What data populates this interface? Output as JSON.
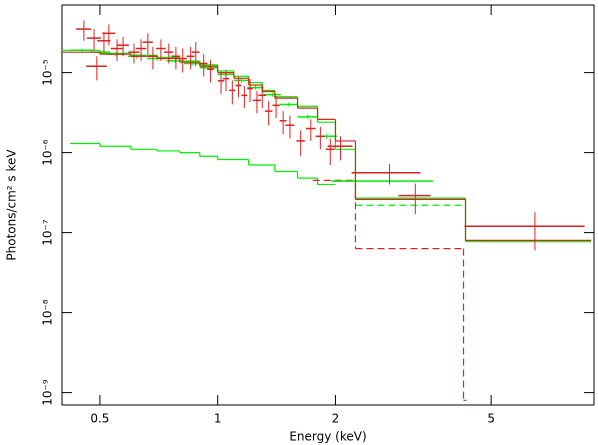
{
  "chart_data": {
    "type": "spectrum",
    "xlabel": "Energy (keV)",
    "ylabel": "Photons/cm² s keV",
    "xscale": "log",
    "yscale": "log",
    "xlim": [
      0.4,
      9.16
    ],
    "ylim": [
      7e-10,
      7e-05
    ],
    "xticks": [
      0.5,
      1,
      2,
      5
    ],
    "yticks": [
      {
        "value": 1e-09,
        "label": "10⁻⁹"
      },
      {
        "value": 1e-08,
        "label": "10⁻⁸"
      },
      {
        "value": 1e-07,
        "label": "10⁻⁷"
      },
      {
        "value": 1e-06,
        "label": "10⁻⁶"
      },
      {
        "value": 1e-05,
        "label": "10⁻⁵"
      }
    ],
    "series": [
      {
        "kind": "step",
        "color": "#00ee00",
        "dash": false,
        "bins": [
          0.42,
          0.5,
          0.6,
          0.7,
          0.8,
          0.9,
          1.0,
          1.2,
          1.4,
          1.6,
          1.8,
          2.0
        ],
        "values": [
          1.3e-06,
          1.2e-06,
          1.1e-06,
          1.05e-06,
          1e-06,
          9e-07,
          8.2e-07,
          7e-07,
          5.8e-07,
          4.8e-07,
          4e-07
        ]
      },
      {
        "kind": "step",
        "color": "#00ee00",
        "dash": false,
        "bins": [
          0.4,
          0.5,
          0.6,
          0.7,
          0.8,
          0.9,
          1.0,
          1.1,
          1.2,
          1.3,
          1.4,
          1.6,
          1.8,
          2.0,
          2.25,
          4.3,
          9.0
        ],
        "values": [
          1.9e-05,
          1.75e-05,
          1.65e-05,
          1.55e-05,
          1.4e-05,
          1.25e-05,
          1.05e-05,
          9e-06,
          7.5e-06,
          6e-06,
          5e-06,
          3.8e-06,
          2.4e-06,
          1.1e-06,
          2.7e-07,
          7.7e-08
        ]
      },
      {
        "kind": "step",
        "color": "#00ee00",
        "dash": true,
        "bins": [
          2.25,
          4.25
        ],
        "values": [
          2.2e-07
        ]
      },
      {
        "kind": "step",
        "color": "#dd2222",
        "dash": true,
        "bins": [
          1.75,
          2.25,
          4.25,
          4.32
        ],
        "values": [
          4.5e-07,
          6.3e-08,
          8e-10
        ]
      },
      {
        "kind": "errorbar",
        "color": "#00ee00",
        "x": [
          0.45,
          0.5,
          0.55,
          0.62,
          0.7,
          0.78,
          0.86,
          0.95,
          1.05,
          1.15,
          1.25,
          1.38,
          1.52,
          1.7,
          1.9,
          2.75
        ],
        "xerr": [
          0.03,
          0.03,
          0.03,
          0.03,
          0.04,
          0.04,
          0.04,
          0.05,
          0.05,
          0.05,
          0.06,
          0.07,
          0.08,
          0.1,
          0.12,
          0.8
        ],
        "values": [
          1.9e-05,
          1.8e-05,
          1.7e-05,
          1.6e-05,
          1.5e-05,
          1.4e-05,
          1.3e-05,
          1.15e-05,
          9.5e-06,
          8e-06,
          6.5e-06,
          5.3e-06,
          4e-06,
          2.8e-06,
          1.6e-06,
          4.4e-07
        ],
        "yerr": [
          1e-06,
          1e-06,
          1e-06,
          1e-06,
          1e-06,
          8e-07,
          8e-07,
          7e-07,
          6e-07,
          5e-07,
          4e-07,
          3e-07,
          2.5e-07,
          2e-07,
          1.2e-07,
          3e-08
        ]
      },
      {
        "kind": "step",
        "color": "#dd2222",
        "dash": false,
        "bins": [
          0.4,
          0.5,
          0.6,
          0.7,
          0.8,
          0.9,
          1.0,
          1.1,
          1.2,
          1.3,
          1.4,
          1.6,
          1.8,
          2.0,
          2.25,
          4.3,
          9.0
        ],
        "values": [
          1.8e-05,
          1.7e-05,
          1.6e-05,
          1.5e-05,
          1.35e-05,
          1.2e-05,
          1e-05,
          8.5e-06,
          7e-06,
          5.8e-06,
          4.8e-06,
          3.6e-06,
          2.6e-06,
          1.4e-06,
          2.6e-07,
          8e-08
        ]
      },
      {
        "kind": "errorbar",
        "color": "#dd2222",
        "x": [
          0.455,
          0.483,
          0.491,
          0.512,
          0.527,
          0.553,
          0.573,
          0.611,
          0.637,
          0.663,
          0.683,
          0.716,
          0.75,
          0.782,
          0.814,
          0.853,
          0.879,
          0.921,
          0.959,
          1.02,
          1.05,
          1.09,
          1.13,
          1.17,
          1.21,
          1.26,
          1.3,
          1.35,
          1.41,
          1.47,
          1.53,
          1.63,
          1.73,
          1.83,
          1.94,
          2.06,
          2.75,
          3.2,
          6.47
        ],
        "xerr": [
          0.02,
          0.02,
          0.03,
          0.02,
          0.02,
          0.02,
          0.02,
          0.02,
          0.02,
          0.02,
          0.02,
          0.02,
          0.02,
          0.02,
          0.02,
          0.02,
          0.02,
          0.02,
          0.02,
          0.02,
          0.02,
          0.02,
          0.02,
          0.02,
          0.02,
          0.03,
          0.03,
          0.03,
          0.03,
          0.03,
          0.04,
          0.04,
          0.05,
          0.05,
          0.05,
          0.15,
          0.55,
          0.3,
          2.2
        ],
        "values": [
          3.5e-05,
          2.7e-05,
          1.2e-05,
          2.5e-05,
          3.1e-05,
          2e-05,
          2.2e-05,
          1.8e-05,
          2e-05,
          2.4e-05,
          1.6e-05,
          2e-05,
          1.8e-05,
          1.6e-05,
          1.5e-05,
          1.6e-05,
          1.8e-05,
          1.3e-05,
          1.1e-05,
          7.9e-06,
          8.4e-06,
          6e-06,
          6.9e-06,
          5.2e-06,
          6.3e-06,
          4.5e-06,
          5.2e-06,
          3.3e-06,
          3.9e-06,
          2.5e-06,
          2.2e-06,
          1.4e-06,
          2e-06,
          1.6e-06,
          1.1e-06,
          1.2e-06,
          5.6e-07,
          2.9e-07,
          1.2e-07
        ],
        "yerr": [
          1e-05,
          8e-06,
          4e-06,
          7e-06,
          9e-06,
          6e-06,
          6e-06,
          5e-06,
          6e-06,
          7e-06,
          5e-06,
          6e-06,
          5e-06,
          5e-06,
          5e-06,
          5e-06,
          6e-06,
          4e-06,
          3.5e-06,
          2.5e-06,
          2.5e-06,
          2e-06,
          2e-06,
          1.6e-06,
          2e-06,
          1.4e-06,
          1.6e-06,
          1.1e-06,
          1.2e-06,
          8e-07,
          7e-07,
          5e-07,
          6e-07,
          5e-07,
          4e-07,
          4e-07,
          1.6e-07,
          1.2e-07,
          6e-08
        ]
      }
    ]
  }
}
